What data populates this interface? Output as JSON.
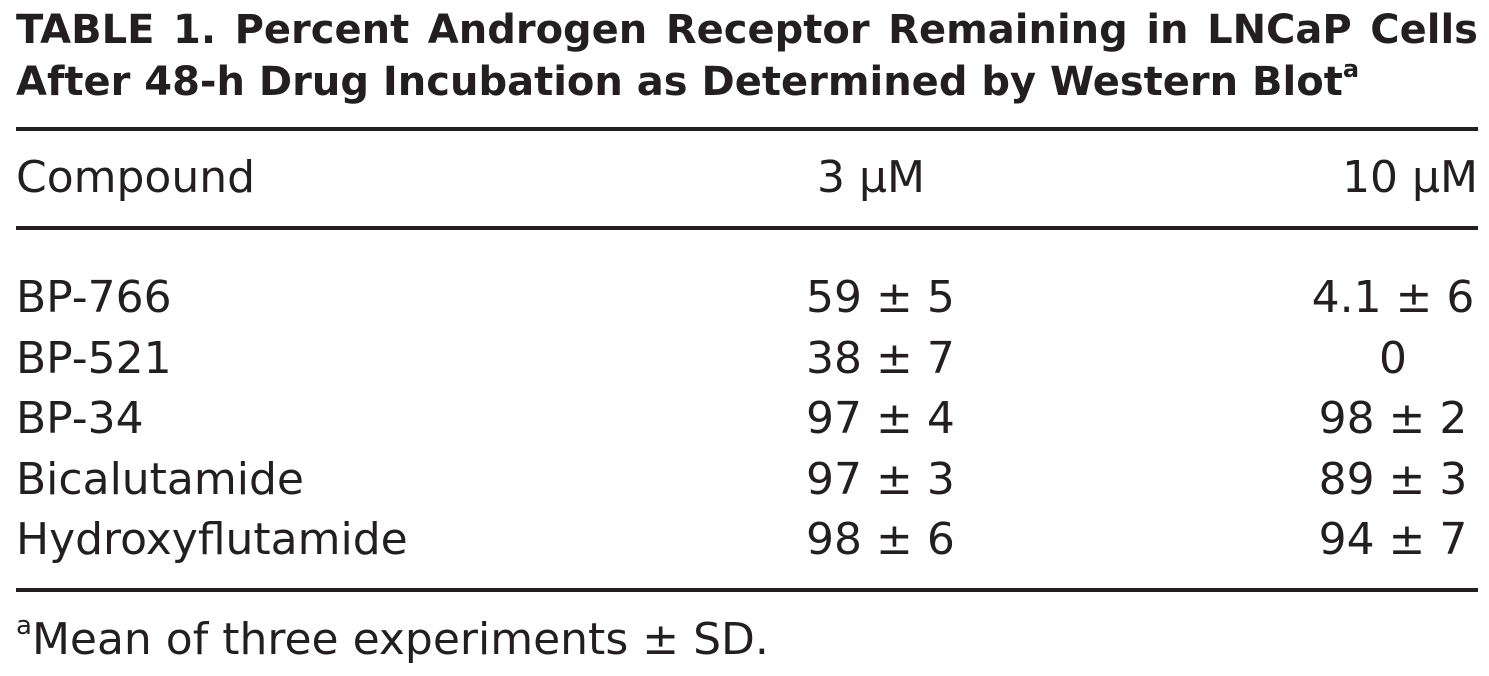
{
  "table": {
    "title_line1": "TABLE 1. Percent Androgen Receptor Remaining in LNCaP Cells",
    "title_line2": "After 48-h Drug Incubation as Determined by Western Blot",
    "title_footnote_mark": "a",
    "headers": {
      "compound": "Compound",
      "conc_3": "3 μM",
      "conc_10": "10 μM"
    },
    "rows": [
      {
        "compound": "BP-766",
        "val_3": "59 ± 5",
        "val_10": "4.1 ± 6"
      },
      {
        "compound": "BP-521",
        "val_3": "38 ± 7",
        "val_10": "0"
      },
      {
        "compound": "BP-34",
        "val_3": "97 ± 4",
        "val_10": "98 ± 2"
      },
      {
        "compound": "Bicalutamide",
        "val_3": "97 ± 3",
        "val_10": "89 ± 3"
      },
      {
        "compound": "Hydroxyflutamide",
        "val_3": "98 ± 6",
        "val_10": "94 ± 7"
      }
    ],
    "footnote_mark": "a",
    "footnote_text": "Mean of three experiments ± SD."
  }
}
